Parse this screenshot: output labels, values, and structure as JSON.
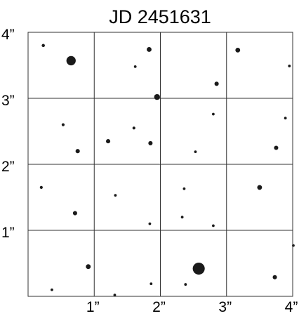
{
  "colors": {
    "background": "#ffffff",
    "grid": "#333333",
    "star": "#1a1a1a",
    "text": "#000000"
  },
  "chart_data": {
    "type": "scatter",
    "title": "JD 2451631",
    "xlabel": "",
    "ylabel": "",
    "xlim": [
      0,
      4
    ],
    "ylim": [
      0,
      4
    ],
    "grid": true,
    "x_ticks": [
      {
        "value": 1,
        "label": "1”"
      },
      {
        "value": 2,
        "label": "2”"
      },
      {
        "value": 3,
        "label": "3”"
      },
      {
        "value": 4,
        "label": "4”"
      }
    ],
    "y_ticks": [
      {
        "value": 1,
        "label": "1”"
      },
      {
        "value": 2,
        "label": "2”"
      },
      {
        "value": 3,
        "label": "3”"
      },
      {
        "value": 4,
        "label": "4”"
      }
    ],
    "points": [
      {
        "x": 0.23,
        "y": 3.8,
        "size": 1.2
      },
      {
        "x": 0.65,
        "y": 3.57,
        "size": 3.5
      },
      {
        "x": 1.83,
        "y": 3.74,
        "size": 1.8
      },
      {
        "x": 1.62,
        "y": 3.48,
        "size": 1.0
      },
      {
        "x": 3.17,
        "y": 3.73,
        "size": 1.8
      },
      {
        "x": 3.95,
        "y": 3.49,
        "size": 1.0
      },
      {
        "x": 2.85,
        "y": 3.22,
        "size": 1.6
      },
      {
        "x": 1.95,
        "y": 3.02,
        "size": 2.2
      },
      {
        "x": 0.53,
        "y": 2.6,
        "size": 1.1
      },
      {
        "x": 1.6,
        "y": 2.55,
        "size": 1.1
      },
      {
        "x": 2.8,
        "y": 2.76,
        "size": 1.0
      },
      {
        "x": 3.89,
        "y": 2.7,
        "size": 1.0
      },
      {
        "x": 1.21,
        "y": 2.35,
        "size": 1.6
      },
      {
        "x": 1.85,
        "y": 2.32,
        "size": 1.6
      },
      {
        "x": 0.75,
        "y": 2.2,
        "size": 1.6
      },
      {
        "x": 2.53,
        "y": 2.19,
        "size": 1.0
      },
      {
        "x": 3.75,
        "y": 2.25,
        "size": 1.6
      },
      {
        "x": 0.2,
        "y": 1.65,
        "size": 1.1
      },
      {
        "x": 1.32,
        "y": 1.53,
        "size": 1.0
      },
      {
        "x": 2.36,
        "y": 1.63,
        "size": 1.0
      },
      {
        "x": 3.5,
        "y": 1.65,
        "size": 1.8
      },
      {
        "x": 0.71,
        "y": 1.26,
        "size": 1.6
      },
      {
        "x": 2.33,
        "y": 1.2,
        "size": 1.0
      },
      {
        "x": 1.84,
        "y": 1.1,
        "size": 1.0
      },
      {
        "x": 2.8,
        "y": 1.07,
        "size": 1.0
      },
      {
        "x": 4.01,
        "y": 0.77,
        "size": 1.0
      },
      {
        "x": 0.91,
        "y": 0.45,
        "size": 1.8
      },
      {
        "x": 2.58,
        "y": 0.42,
        "size": 4.5
      },
      {
        "x": 3.73,
        "y": 0.29,
        "size": 1.6
      },
      {
        "x": 1.86,
        "y": 0.19,
        "size": 1.0
      },
      {
        "x": 2.38,
        "y": 0.18,
        "size": 1.0
      },
      {
        "x": 0.36,
        "y": 0.1,
        "size": 1.0
      },
      {
        "x": 1.31,
        "y": 0.02,
        "size": 1.0
      }
    ]
  }
}
